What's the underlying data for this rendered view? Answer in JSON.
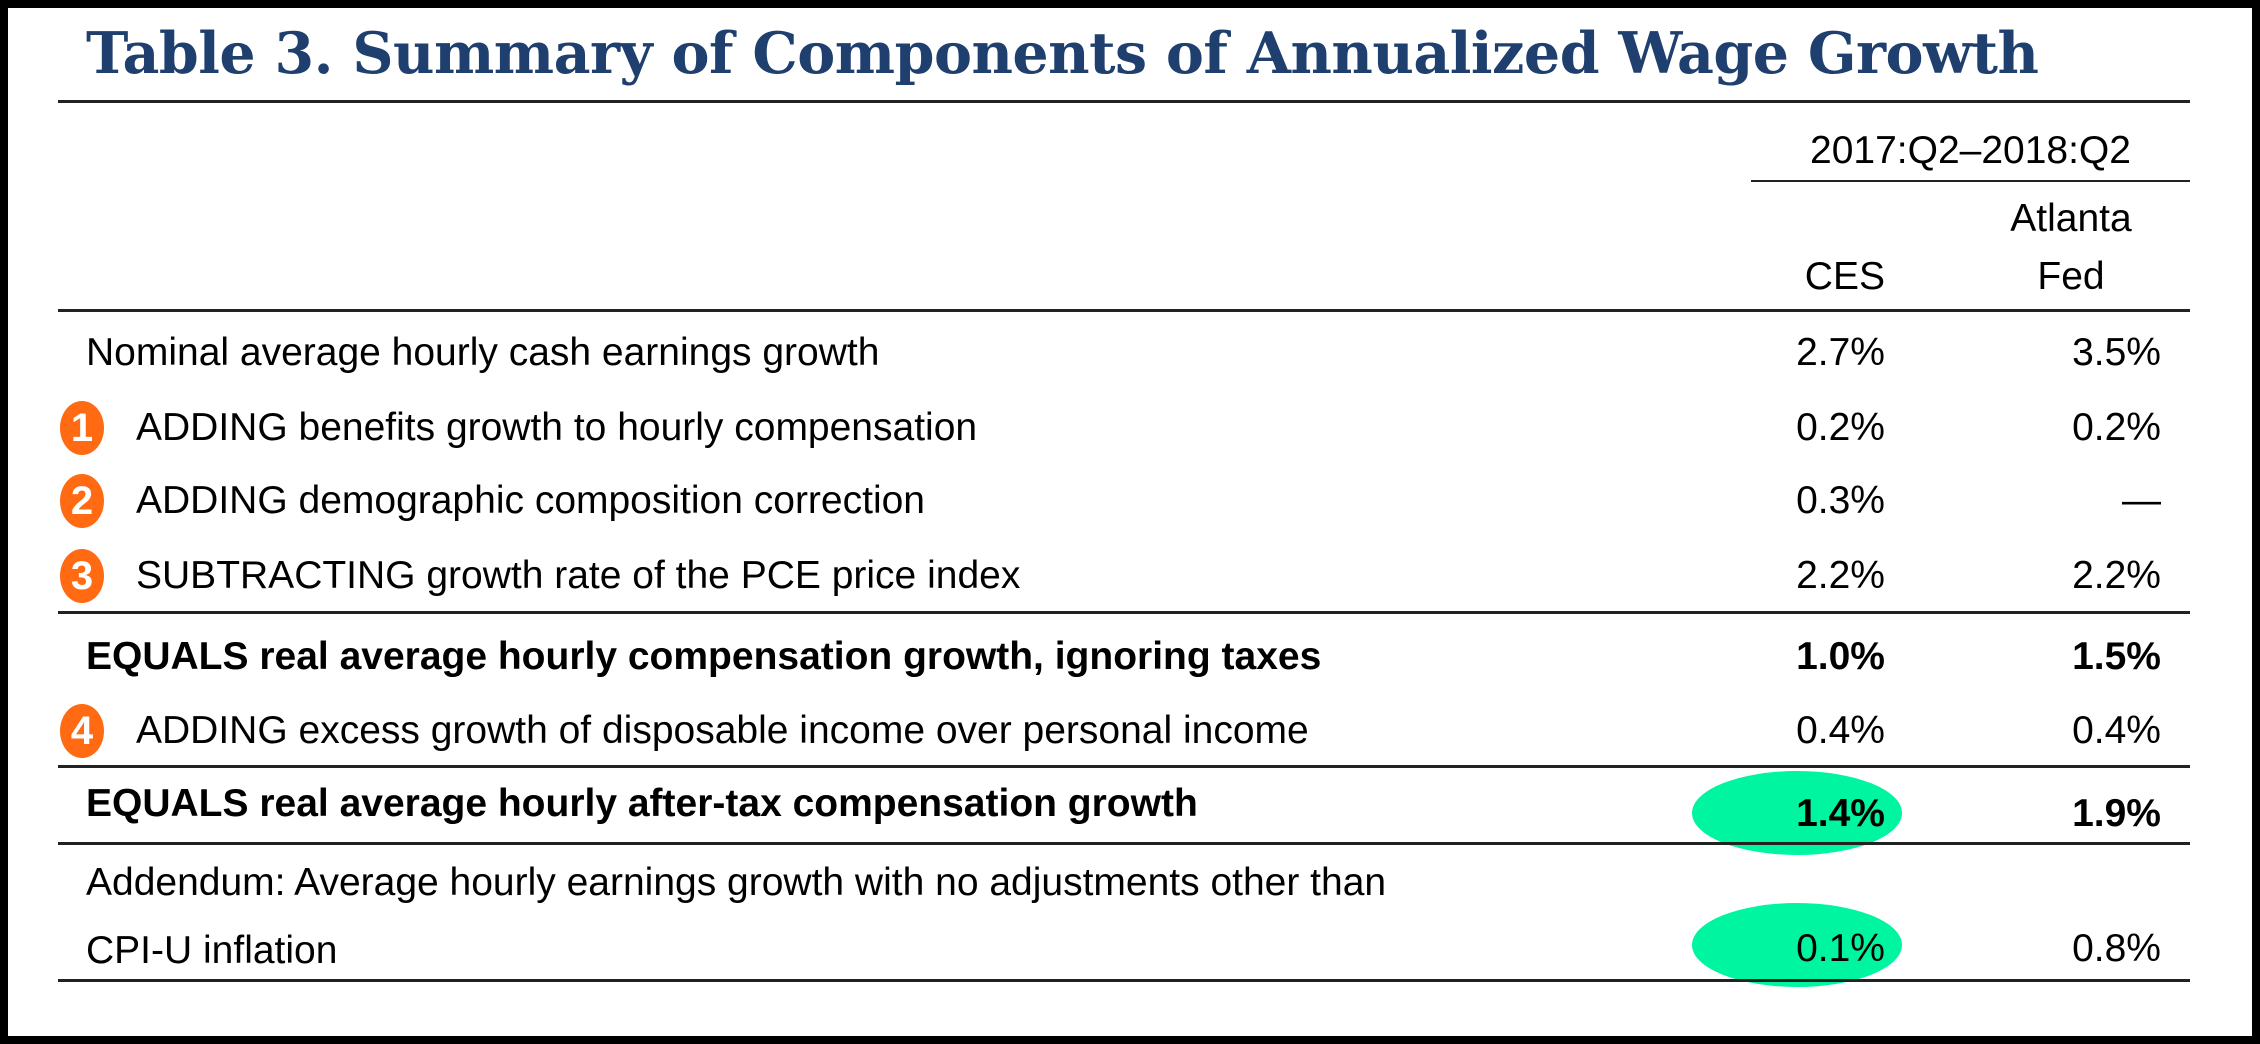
{
  "title": "Table 3. Summary of Components of Annualized Wage Growth",
  "header": {
    "period": "2017:Q2–2018:Q2",
    "col_ces": "CES",
    "col_atlanta_line1": "Atlanta",
    "col_atlanta_line2": "Fed"
  },
  "rows": [
    {
      "label": "Nominal average hourly cash earnings growth",
      "ces": "2.7%",
      "atlanta": "3.5%"
    },
    {
      "badge": "1",
      "label": "ADDING benefits growth to hourly compensation",
      "ces": "0.2%",
      "atlanta": "0.2%"
    },
    {
      "badge": "2",
      "label": "ADDING demographic composition correction",
      "ces": "0.3%",
      "atlanta": "—"
    },
    {
      "badge": "3",
      "label": "SUBTRACTING growth rate of the PCE price index",
      "ces": "2.2%",
      "atlanta": "2.2%"
    },
    {
      "label": "EQUALS real average hourly compensation growth, ignoring taxes",
      "ces": "1.0%",
      "atlanta": "1.5%"
    },
    {
      "badge": "4",
      "label": "ADDING excess growth of disposable income over personal income",
      "ces": "0.4%",
      "atlanta": "0.4%"
    },
    {
      "label": "EQUALS real average hourly after-tax compensation growth",
      "ces": "1.4%",
      "atlanta": "1.9%"
    }
  ],
  "addendum": {
    "label_line1": "Addendum: Average hourly earnings growth with no adjustments other than",
    "label_line2": "CPI-U inflation",
    "ces": "0.1%",
    "atlanta": "0.8%"
  },
  "colors": {
    "title": "#1f3f6e",
    "badge": "#ff6a13",
    "highlight": "#00f5a0"
  }
}
